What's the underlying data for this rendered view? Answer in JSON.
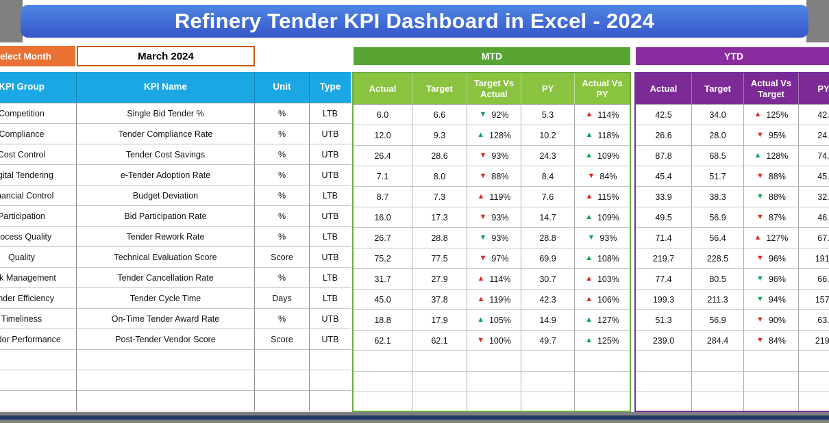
{
  "title": "Refinery Tender KPI Dashboard in Excel - 2024",
  "month_selector": {
    "label": "Select Month",
    "value": "March 2024"
  },
  "sections": {
    "mtd": "MTD",
    "ytd": "YTD"
  },
  "table": {
    "left_headers": {
      "group": "KPI Group",
      "name": "KPI Name",
      "unit": "Unit",
      "type": "Type"
    },
    "mtd_headers": [
      "Actual",
      "Target",
      "Target Vs Actual",
      "PY",
      "Actual Vs PY"
    ],
    "ytd_headers": [
      "Actual",
      "Target",
      "Actual Vs Target",
      "PY"
    ],
    "empty_row_count": 3,
    "rows": [
      {
        "group": "Competition",
        "name": "Single Bid Tender %",
        "unit": "%",
        "type": "LTB",
        "mtd": {
          "actual": "6.0",
          "target": "6.6",
          "target_vs_actual": {
            "arrow": "down",
            "color": "green",
            "value": "92%"
          },
          "py": "5.3",
          "actual_vs_py": {
            "arrow": "up",
            "color": "red",
            "value": "114%"
          }
        },
        "ytd": {
          "actual": "42.5",
          "target": "34.0",
          "actual_vs_target": {
            "arrow": "up",
            "color": "red",
            "value": "125%"
          },
          "py": "42."
        }
      },
      {
        "group": "Compliance",
        "name": "Tender Compliance Rate",
        "unit": "%",
        "type": "UTB",
        "mtd": {
          "actual": "12.0",
          "target": "9.3",
          "target_vs_actual": {
            "arrow": "up",
            "color": "green",
            "value": "128%"
          },
          "py": "10.2",
          "actual_vs_py": {
            "arrow": "up",
            "color": "green",
            "value": "118%"
          }
        },
        "ytd": {
          "actual": "26.6",
          "target": "28.0",
          "actual_vs_target": {
            "arrow": "down",
            "color": "red",
            "value": "95%"
          },
          "py": "24."
        }
      },
      {
        "group": "Cost Control",
        "name": "Tender Cost Savings",
        "unit": "%",
        "type": "UTB",
        "mtd": {
          "actual": "26.4",
          "target": "28.6",
          "target_vs_actual": {
            "arrow": "down",
            "color": "red",
            "value": "93%"
          },
          "py": "24.3",
          "actual_vs_py": {
            "arrow": "up",
            "color": "green",
            "value": "109%"
          }
        },
        "ytd": {
          "actual": "87.8",
          "target": "68.5",
          "actual_vs_target": {
            "arrow": "up",
            "color": "green",
            "value": "128%"
          },
          "py": "74."
        }
      },
      {
        "group": "Digital Tendering",
        "name": "e-Tender Adoption Rate",
        "unit": "%",
        "type": "UTB",
        "mtd": {
          "actual": "7.1",
          "target": "8.0",
          "target_vs_actual": {
            "arrow": "down",
            "color": "red",
            "value": "88%"
          },
          "py": "8.4",
          "actual_vs_py": {
            "arrow": "down",
            "color": "red",
            "value": "84%"
          }
        },
        "ytd": {
          "actual": "45.4",
          "target": "51.7",
          "actual_vs_target": {
            "arrow": "down",
            "color": "red",
            "value": "88%"
          },
          "py": "45."
        }
      },
      {
        "group": "Financial Control",
        "name": "Budget Deviation",
        "unit": "%",
        "type": "LTB",
        "mtd": {
          "actual": "8.7",
          "target": "7.3",
          "target_vs_actual": {
            "arrow": "up",
            "color": "red",
            "value": "119%"
          },
          "py": "7.6",
          "actual_vs_py": {
            "arrow": "up",
            "color": "red",
            "value": "115%"
          }
        },
        "ytd": {
          "actual": "33.9",
          "target": "38.3",
          "actual_vs_target": {
            "arrow": "down",
            "color": "green",
            "value": "88%"
          },
          "py": "32."
        }
      },
      {
        "group": "Participation",
        "name": "Bid Participation Rate",
        "unit": "%",
        "type": "UTB",
        "mtd": {
          "actual": "16.0",
          "target": "17.3",
          "target_vs_actual": {
            "arrow": "down",
            "color": "red",
            "value": "93%"
          },
          "py": "14.7",
          "actual_vs_py": {
            "arrow": "up",
            "color": "green",
            "value": "109%"
          }
        },
        "ytd": {
          "actual": "49.5",
          "target": "56.9",
          "actual_vs_target": {
            "arrow": "down",
            "color": "red",
            "value": "87%"
          },
          "py": "46."
        }
      },
      {
        "group": "Process Quality",
        "name": "Tender Rework Rate",
        "unit": "%",
        "type": "LTB",
        "mtd": {
          "actual": "26.7",
          "target": "28.8",
          "target_vs_actual": {
            "arrow": "down",
            "color": "green",
            "value": "93%"
          },
          "py": "28.8",
          "actual_vs_py": {
            "arrow": "down",
            "color": "green",
            "value": "93%"
          }
        },
        "ytd": {
          "actual": "71.4",
          "target": "56.4",
          "actual_vs_target": {
            "arrow": "up",
            "color": "red",
            "value": "127%"
          },
          "py": "67."
        }
      },
      {
        "group": "Quality",
        "name": "Technical Evaluation Score",
        "unit": "Score",
        "type": "UTB",
        "mtd": {
          "actual": "75.2",
          "target": "77.5",
          "target_vs_actual": {
            "arrow": "down",
            "color": "red",
            "value": "97%"
          },
          "py": "69.9",
          "actual_vs_py": {
            "arrow": "up",
            "color": "green",
            "value": "108%"
          }
        },
        "ytd": {
          "actual": "219.7",
          "target": "228.5",
          "actual_vs_target": {
            "arrow": "down",
            "color": "red",
            "value": "96%"
          },
          "py": "191."
        }
      },
      {
        "group": "Risk Management",
        "name": "Tender Cancellation Rate",
        "unit": "%",
        "type": "LTB",
        "mtd": {
          "actual": "31.7",
          "target": "27.9",
          "target_vs_actual": {
            "arrow": "up",
            "color": "red",
            "value": "114%"
          },
          "py": "30.7",
          "actual_vs_py": {
            "arrow": "up",
            "color": "red",
            "value": "103%"
          }
        },
        "ytd": {
          "actual": "77.4",
          "target": "80.5",
          "actual_vs_target": {
            "arrow": "down",
            "color": "green",
            "value": "96%"
          },
          "py": "66."
        }
      },
      {
        "group": "Tender Efficiency",
        "name": "Tender Cycle Time",
        "unit": "Days",
        "type": "LTB",
        "mtd": {
          "actual": "45.0",
          "target": "37.8",
          "target_vs_actual": {
            "arrow": "up",
            "color": "red",
            "value": "119%"
          },
          "py": "42.3",
          "actual_vs_py": {
            "arrow": "up",
            "color": "red",
            "value": "106%"
          }
        },
        "ytd": {
          "actual": "199.3",
          "target": "211.3",
          "actual_vs_target": {
            "arrow": "down",
            "color": "green",
            "value": "94%"
          },
          "py": "157."
        }
      },
      {
        "group": "Timeliness",
        "name": "On-Time Tender Award Rate",
        "unit": "%",
        "type": "UTB",
        "mtd": {
          "actual": "18.8",
          "target": "17.9",
          "target_vs_actual": {
            "arrow": "up",
            "color": "green",
            "value": "105%"
          },
          "py": "14.9",
          "actual_vs_py": {
            "arrow": "up",
            "color": "green",
            "value": "127%"
          }
        },
        "ytd": {
          "actual": "51.3",
          "target": "56.9",
          "actual_vs_target": {
            "arrow": "down",
            "color": "red",
            "value": "90%"
          },
          "py": "63."
        }
      },
      {
        "group": "Vendor Performance",
        "name": "Post-Tender Vendor Score",
        "unit": "Score",
        "type": "UTB",
        "mtd": {
          "actual": "62.1",
          "target": "62.1",
          "target_vs_actual": {
            "arrow": "down",
            "color": "red",
            "value": "100%"
          },
          "py": "49.7",
          "actual_vs_py": {
            "arrow": "up",
            "color": "green",
            "value": "125%"
          }
        },
        "ytd": {
          "actual": "239.0",
          "target": "284.4",
          "actual_vs_target": {
            "arrow": "down",
            "color": "red",
            "value": "84%"
          },
          "py": "219."
        }
      }
    ]
  },
  "colors": {
    "banner_top": "#4f86e3",
    "banner_bottom": "#3757c9",
    "orange": "#E97132",
    "orange_border": "#C55A11",
    "blue_header": "#1BA7E3",
    "mtd_band": "#57A433",
    "mtd_sub": "#8AC33F",
    "mtd_border": "#6AAE43",
    "ytd_band": "#8A2BA0",
    "ytd_sub": "#7C2B96",
    "ytd_border": "#7030A0",
    "trend_red": "#E02420",
    "trend_green": "#00A550",
    "bottom_bar": "#1F3864",
    "gray_strip": "#808080"
  }
}
